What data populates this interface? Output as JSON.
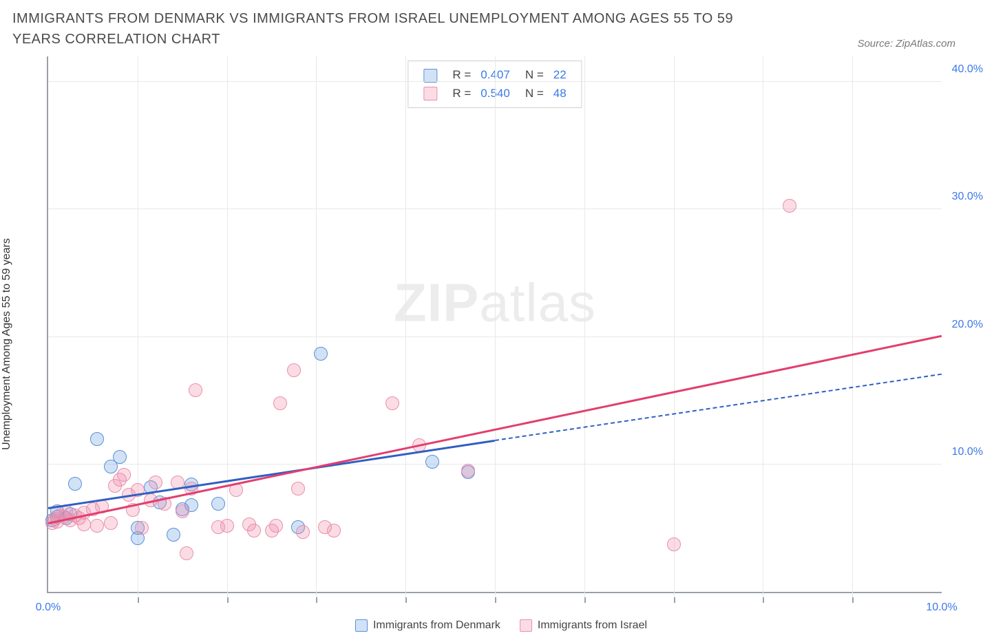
{
  "title": "IMMIGRANTS FROM DENMARK VS IMMIGRANTS FROM ISRAEL UNEMPLOYMENT AMONG AGES 55 TO 59 YEARS CORRELATION CHART",
  "source": "Source: ZipAtlas.com",
  "ylabel": "Unemployment Among Ages 55 to 59 years",
  "watermark_bold": "ZIP",
  "watermark_light": "atlas",
  "x_axis": {
    "min": 0.0,
    "max": 10.0,
    "ticks": [
      0.0,
      10.0
    ],
    "tick_labels": [
      "0.0%",
      "10.0%"
    ],
    "minor_ticks": [
      1.0,
      2.0,
      3.0,
      4.0,
      5.0,
      6.0,
      7.0,
      8.0,
      9.0
    ]
  },
  "y_axis": {
    "min": 0.0,
    "max": 42.0,
    "ticks": [
      10.0,
      20.0,
      30.0,
      40.0
    ],
    "tick_labels": [
      "10.0%",
      "20.0%",
      "30.0%",
      "40.0%"
    ]
  },
  "colors": {
    "series1_fill": "rgba(104,158,230,0.30)",
    "series1_stroke": "#5a8fd6",
    "series2_fill": "rgba(242,140,168,0.30)",
    "series2_stroke": "#e98fab",
    "trend1": "#2f5fc4",
    "trend2": "#e23e6e",
    "grid": "#e8e8e8",
    "axis": "#9aa0a6",
    "tick_text": "#3b78e7",
    "stat_text": "#3b78e7"
  },
  "point_radius": 10,
  "series": [
    {
      "key": "denmark",
      "label": "Immigrants from Denmark",
      "r_value": "0.407",
      "n_value": "22",
      "trend": {
        "x1": 0.0,
        "y1": 6.5,
        "x2": 5.0,
        "y2": 11.8,
        "extend_to_x": 10.0,
        "extend_y": 17.0
      },
      "points": [
        [
          0.05,
          5.6
        ],
        [
          0.1,
          5.9
        ],
        [
          0.1,
          6.3
        ],
        [
          0.2,
          5.8
        ],
        [
          0.25,
          6.1
        ],
        [
          0.3,
          8.5
        ],
        [
          0.55,
          12.0
        ],
        [
          0.7,
          9.8
        ],
        [
          0.8,
          10.6
        ],
        [
          1.0,
          4.2
        ],
        [
          1.0,
          5.0
        ],
        [
          1.15,
          8.2
        ],
        [
          1.25,
          7.0
        ],
        [
          1.4,
          4.5
        ],
        [
          1.5,
          6.5
        ],
        [
          1.6,
          8.4
        ],
        [
          1.6,
          6.8
        ],
        [
          1.9,
          6.9
        ],
        [
          2.8,
          5.1
        ],
        [
          3.05,
          18.7
        ],
        [
          4.3,
          10.2
        ],
        [
          4.7,
          9.4
        ]
      ]
    },
    {
      "key": "israel",
      "label": "Immigrants from Israel",
      "r_value": "0.540",
      "n_value": "48",
      "trend": {
        "x1": 0.0,
        "y1": 5.3,
        "x2": 10.0,
        "y2": 20.0
      },
      "points": [
        [
          0.05,
          5.4
        ],
        [
          0.08,
          5.7
        ],
        [
          0.1,
          5.5
        ],
        [
          0.12,
          6.0
        ],
        [
          0.18,
          5.9
        ],
        [
          0.2,
          6.3
        ],
        [
          0.25,
          5.6
        ],
        [
          0.3,
          6.0
        ],
        [
          0.35,
          5.8
        ],
        [
          0.4,
          5.3
        ],
        [
          0.4,
          6.2
        ],
        [
          0.5,
          6.5
        ],
        [
          0.55,
          5.2
        ],
        [
          0.6,
          6.7
        ],
        [
          0.7,
          5.4
        ],
        [
          0.75,
          8.3
        ],
        [
          0.8,
          8.8
        ],
        [
          0.85,
          9.2
        ],
        [
          0.9,
          7.6
        ],
        [
          0.95,
          6.4
        ],
        [
          1.0,
          8.0
        ],
        [
          1.05,
          5.0
        ],
        [
          1.15,
          7.2
        ],
        [
          1.2,
          8.6
        ],
        [
          1.3,
          6.9
        ],
        [
          1.45,
          8.6
        ],
        [
          1.5,
          6.3
        ],
        [
          1.55,
          3.0
        ],
        [
          1.6,
          8.1
        ],
        [
          1.65,
          15.8
        ],
        [
          1.9,
          5.1
        ],
        [
          2.0,
          5.2
        ],
        [
          2.1,
          8.0
        ],
        [
          2.25,
          5.3
        ],
        [
          2.3,
          4.8
        ],
        [
          2.5,
          4.8
        ],
        [
          2.55,
          5.2
        ],
        [
          2.6,
          14.8
        ],
        [
          2.75,
          17.4
        ],
        [
          2.8,
          8.1
        ],
        [
          2.85,
          4.7
        ],
        [
          3.1,
          5.1
        ],
        [
          3.2,
          4.8
        ],
        [
          3.85,
          14.8
        ],
        [
          4.15,
          11.5
        ],
        [
          4.7,
          9.5
        ],
        [
          7.0,
          3.7
        ],
        [
          8.3,
          30.3
        ]
      ]
    }
  ],
  "bottom_legend": [
    {
      "label": "Immigrants from Denmark",
      "color_key": "series1"
    },
    {
      "label": "Immigrants from Israel",
      "color_key": "series2"
    }
  ]
}
